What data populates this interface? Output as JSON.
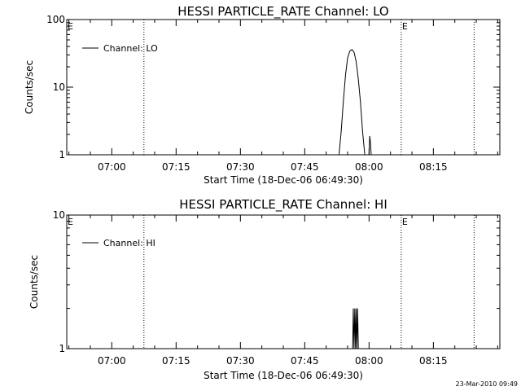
{
  "chart_data": [
    {
      "type": "line",
      "title": "HESSI PARTICLE_RATE Channel: LO",
      "xlabel": "Start Time (18-Dec-06 06:49:30)",
      "ylabel": "Counts/sec",
      "y_scale": "log",
      "ylim": [
        1,
        100
      ],
      "xlim": [
        "06:49:30",
        "08:30:30"
      ],
      "y_tick_labels": [
        "100",
        "10",
        "1"
      ],
      "x_tick_labels": [
        "07:00",
        "07:15",
        "07:30",
        "07:45",
        "08:00",
        "08:15"
      ],
      "legend": {
        "placement": "top-left",
        "entries": [
          "Channel: LO"
        ]
      },
      "grid": false,
      "markers": [
        {
          "label": "",
          "x": "07:07:30",
          "style": "dotted"
        },
        {
          "label": "E",
          "x": "08:07:30",
          "style": "dotted"
        },
        {
          "label": "",
          "x": "08:24:30",
          "style": "dotted"
        },
        {
          "label": "E",
          "x": "06:49:30",
          "style": "none"
        }
      ],
      "series": [
        {
          "name": "Channel: LO",
          "x": [
            "07:53:00",
            "07:53:30",
            "07:54:00",
            "07:54:30",
            "07:55:00",
            "07:55:30",
            "07:56:00",
            "07:56:30",
            "07:57:00",
            "07:57:30",
            "07:58:00",
            "07:58:30",
            "07:59:00"
          ],
          "y": [
            1,
            2.2,
            6,
            15,
            27,
            34,
            36,
            33,
            24,
            13,
            6,
            2.2,
            1
          ]
        },
        {
          "name": "Channel: LO",
          "x": [
            "08:00:00",
            "08:00:10",
            "08:00:20",
            "08:00:30"
          ],
          "y": [
            1,
            1.9,
            1.5,
            1
          ]
        }
      ]
    },
    {
      "type": "line",
      "title": "HESSI PARTICLE_RATE Channel: HI",
      "xlabel": "Start Time (18-Dec-06 06:49:30)",
      "ylabel": "Counts/sec",
      "y_scale": "log",
      "ylim": [
        1,
        10
      ],
      "xlim": [
        "06:49:30",
        "08:30:30"
      ],
      "y_tick_labels": [
        "10",
        "1"
      ],
      "x_tick_labels": [
        "07:00",
        "07:15",
        "07:30",
        "07:45",
        "08:00",
        "08:15"
      ],
      "legend": {
        "placement": "top-left",
        "entries": [
          "Channel: HI"
        ]
      },
      "grid": false,
      "markers": [
        {
          "label": "",
          "x": "07:07:30",
          "style": "dotted"
        },
        {
          "label": "E",
          "x": "08:07:30",
          "style": "dotted"
        },
        {
          "label": "",
          "x": "08:24:30",
          "style": "dotted"
        },
        {
          "label": "E",
          "x": "06:49:30",
          "style": "none"
        }
      ],
      "series": [
        {
          "name": "Channel: HI",
          "x": [
            "07:56:10",
            "07:56:20",
            "07:56:30",
            "07:56:40",
            "07:56:50",
            "07:57:00",
            "07:57:10",
            "07:57:20",
            "07:57:30"
          ],
          "y": [
            1,
            2,
            1,
            2,
            1,
            2,
            1,
            2,
            1
          ]
        }
      ]
    }
  ],
  "footer": {
    "timestamp": "23-Mar-2010 09:49"
  }
}
